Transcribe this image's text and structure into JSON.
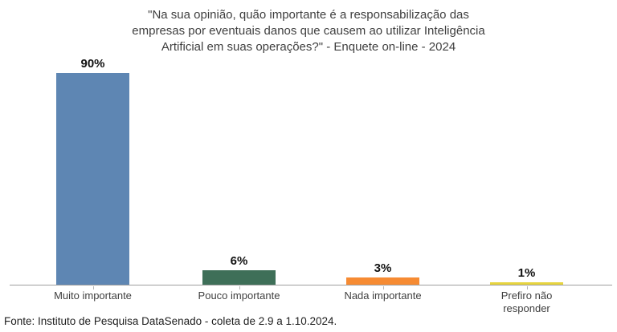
{
  "chart_data": {
    "type": "bar",
    "title": "\"Na sua opinião, quão importante é a responsabilização das empresas por eventuais danos que causem ao utilizar Inteligência Artificial em suas operações?\" - Enquete on-line - 2024",
    "title_lines": [
      "\"Na sua opinião, quão importante é a responsabilização das",
      "empresas por eventuais danos que causem ao utilizar Inteligência",
      "Artificial em suas operações?\" - Enquete on-line - 2024"
    ],
    "categories": [
      "Muito importante",
      "Pouco importante",
      "Nada importante",
      "Prefiro não responder"
    ],
    "values": [
      90,
      6,
      3,
      1
    ],
    "value_labels": [
      "90%",
      "6%",
      "3%",
      "1%"
    ],
    "colors": [
      "#5E86B3",
      "#3E6F58",
      "#F68B33",
      "#E7D43F"
    ],
    "unit": "%",
    "ylim": [
      0,
      95
    ],
    "grid": false,
    "legend": "none",
    "xlabel": "",
    "ylabel": "",
    "source": "Fonte: Instituto de Pesquisa DataSenado - coleta de 2.9 a 1.10.2024."
  }
}
